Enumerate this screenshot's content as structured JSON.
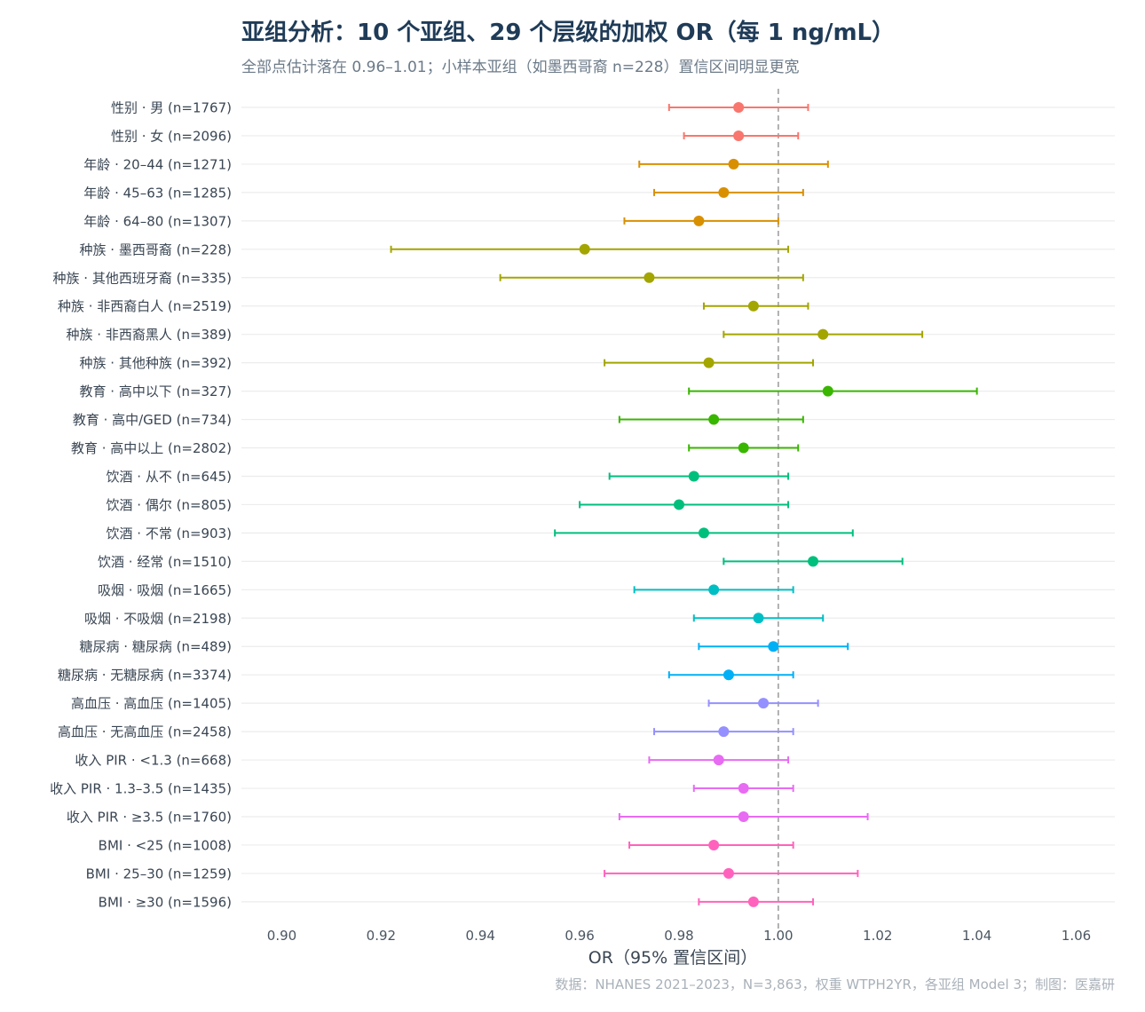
{
  "chart_data": {
    "type": "forest",
    "title": "亚组分析：10 个亚组、29 个层级的加权 OR（每 1 ng/mL）",
    "subtitle": "全部点估计落在 0.96–1.01；小样本亚组（如墨西哥裔 n=228）置信区间明显更宽",
    "xlabel": "OR（95% 置信区间）",
    "caption": "数据：NHANES 2021–2023，N=3,863，权重 WTPH2YR，各亚组 Model 3；制图：医嘉研",
    "xlim": [
      0.9,
      1.06
    ],
    "x_ticks": [
      0.9,
      0.92,
      0.94,
      0.96,
      0.98,
      1.0,
      1.02,
      1.04,
      1.06
    ],
    "x_tick_labels": [
      "0.90",
      "0.92",
      "0.94",
      "0.96",
      "0.98",
      "1.00",
      "1.02",
      "1.04",
      "1.06"
    ],
    "reference_line": 1.0,
    "grid": "horizontal",
    "rows": [
      {
        "label": "性别 · 男 (n=1767)",
        "or": 0.992,
        "lo": 0.978,
        "hi": 1.006,
        "color": "#F8766D"
      },
      {
        "label": "性别 · 女 (n=2096)",
        "or": 0.992,
        "lo": 0.981,
        "hi": 1.004,
        "color": "#F8766D"
      },
      {
        "label": "年龄 · 20–44 (n=1271)",
        "or": 0.991,
        "lo": 0.972,
        "hi": 1.01,
        "color": "#D89000"
      },
      {
        "label": "年龄 · 45–63 (n=1285)",
        "or": 0.989,
        "lo": 0.975,
        "hi": 1.005,
        "color": "#D89000"
      },
      {
        "label": "年龄 · 64–80 (n=1307)",
        "or": 0.984,
        "lo": 0.969,
        "hi": 1.0,
        "color": "#D89000"
      },
      {
        "label": "种族 · 墨西哥裔 (n=228)",
        "or": 0.961,
        "lo": 0.922,
        "hi": 1.002,
        "color": "#A3A500"
      },
      {
        "label": "种族 · 其他西班牙裔 (n=335)",
        "or": 0.974,
        "lo": 0.944,
        "hi": 1.005,
        "color": "#A3A500"
      },
      {
        "label": "种族 · 非西裔白人 (n=2519)",
        "or": 0.995,
        "lo": 0.985,
        "hi": 1.006,
        "color": "#A3A500"
      },
      {
        "label": "种族 · 非西裔黑人 (n=389)",
        "or": 1.009,
        "lo": 0.989,
        "hi": 1.029,
        "color": "#A3A500"
      },
      {
        "label": "种族 · 其他种族 (n=392)",
        "or": 0.986,
        "lo": 0.965,
        "hi": 1.007,
        "color": "#A3A500"
      },
      {
        "label": "教育 · 高中以下 (n=327)",
        "or": 1.01,
        "lo": 0.982,
        "hi": 1.04,
        "color": "#39B600"
      },
      {
        "label": "教育 · 高中/GED (n=734)",
        "or": 0.987,
        "lo": 0.968,
        "hi": 1.005,
        "color": "#39B600"
      },
      {
        "label": "教育 · 高中以上 (n=2802)",
        "or": 0.993,
        "lo": 0.982,
        "hi": 1.004,
        "color": "#39B600"
      },
      {
        "label": "饮酒 · 从不 (n=645)",
        "or": 0.983,
        "lo": 0.966,
        "hi": 1.002,
        "color": "#00BF7D"
      },
      {
        "label": "饮酒 · 偶尔 (n=805)",
        "or": 0.98,
        "lo": 0.96,
        "hi": 1.002,
        "color": "#00BF7D"
      },
      {
        "label": "饮酒 · 不常 (n=903)",
        "or": 0.985,
        "lo": 0.955,
        "hi": 1.015,
        "color": "#00BF7D"
      },
      {
        "label": "饮酒 · 经常 (n=1510)",
        "or": 1.007,
        "lo": 0.989,
        "hi": 1.025,
        "color": "#00BF7D"
      },
      {
        "label": "吸烟 · 吸烟 (n=1665)",
        "or": 0.987,
        "lo": 0.971,
        "hi": 1.003,
        "color": "#00BFC4"
      },
      {
        "label": "吸烟 · 不吸烟 (n=2198)",
        "or": 0.996,
        "lo": 0.983,
        "hi": 1.009,
        "color": "#00BFC4"
      },
      {
        "label": "糖尿病 · 糖尿病 (n=489)",
        "or": 0.999,
        "lo": 0.984,
        "hi": 1.014,
        "color": "#00B0F6"
      },
      {
        "label": "糖尿病 · 无糖尿病 (n=3374)",
        "or": 0.99,
        "lo": 0.978,
        "hi": 1.003,
        "color": "#00B0F6"
      },
      {
        "label": "高血压 · 高血压 (n=1405)",
        "or": 0.997,
        "lo": 0.986,
        "hi": 1.008,
        "color": "#9590FF"
      },
      {
        "label": "高血压 · 无高血压 (n=2458)",
        "or": 0.989,
        "lo": 0.975,
        "hi": 1.003,
        "color": "#9590FF"
      },
      {
        "label": "收入 PIR · <1.3 (n=668)",
        "or": 0.988,
        "lo": 0.974,
        "hi": 1.002,
        "color": "#E76BF3"
      },
      {
        "label": "收入 PIR · 1.3–3.5 (n=1435)",
        "or": 0.993,
        "lo": 0.983,
        "hi": 1.003,
        "color": "#E76BF3"
      },
      {
        "label": "收入 PIR · ≥3.5 (n=1760)",
        "or": 0.993,
        "lo": 0.968,
        "hi": 1.018,
        "color": "#E76BF3"
      },
      {
        "label": "BMI · <25 (n=1008)",
        "or": 0.987,
        "lo": 0.97,
        "hi": 1.003,
        "color": "#FF62BC"
      },
      {
        "label": "BMI · 25–30 (n=1259)",
        "or": 0.99,
        "lo": 0.965,
        "hi": 1.016,
        "color": "#FF62BC"
      },
      {
        "label": "BMI · ≥30 (n=1596)",
        "or": 0.995,
        "lo": 0.984,
        "hi": 1.007,
        "color": "#FF62BC"
      }
    ]
  }
}
